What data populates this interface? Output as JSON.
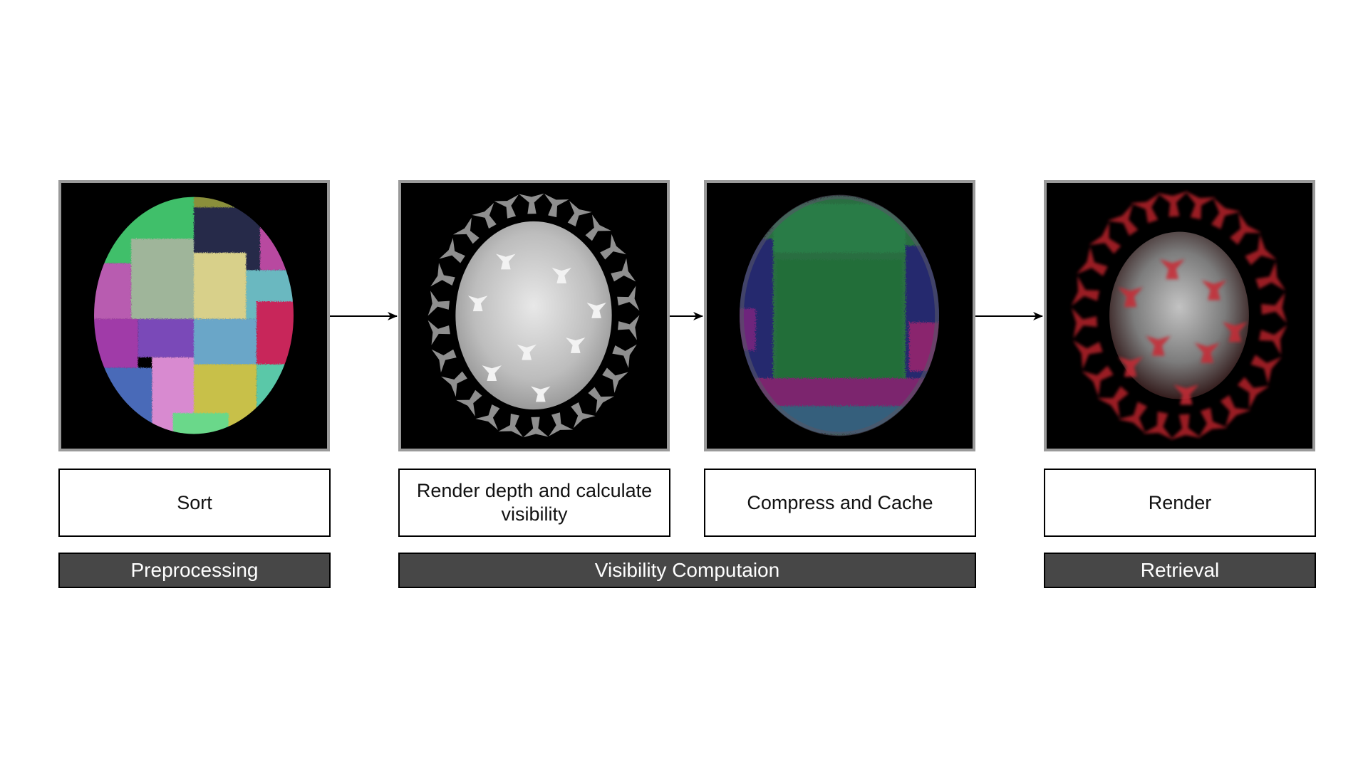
{
  "steps": [
    {
      "label": "Sort"
    },
    {
      "label": "Render depth and calculate visibility"
    },
    {
      "label": "Compress and Cache"
    },
    {
      "label": "Render"
    }
  ],
  "stages": [
    {
      "label": "Preprocessing"
    },
    {
      "label": "Visibility Computaion"
    },
    {
      "label": "Retrieval"
    }
  ],
  "colors": {
    "panel_border": "#9a9a9a",
    "stage_bar": "#474747",
    "render_red": "#c0202a"
  }
}
